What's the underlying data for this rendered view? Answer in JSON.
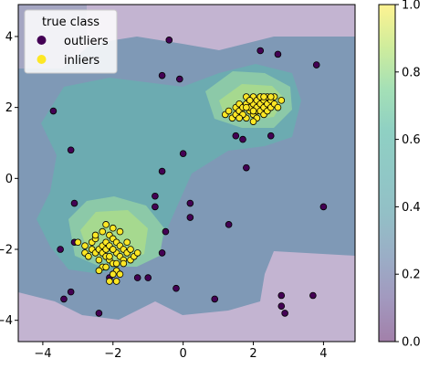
{
  "chart_data": {
    "type": "scatter",
    "title": "",
    "xlabel": "",
    "ylabel": "",
    "xlim": [
      -4.7,
      4.9
    ],
    "ylim": [
      -4.6,
      4.9
    ],
    "xticks": [
      -4,
      -2,
      0,
      2,
      4
    ],
    "xtick_labels": [
      "−4",
      "−2",
      "0",
      "2",
      "4"
    ],
    "yticks": [
      -4,
      -2,
      0,
      2,
      4
    ],
    "ytick_labels": [
      "−4",
      "−2",
      "0",
      "2",
      "4"
    ],
    "grid": false,
    "background": {
      "type": "contourf",
      "colormap": "viridis",
      "alpha": 0.5,
      "range": [
        0.0,
        1.0
      ]
    },
    "colorbar": {
      "ticks": [
        0.0,
        0.2,
        0.4,
        0.6,
        0.8,
        1.0
      ],
      "tick_labels": [
        "0.0",
        "0.2",
        "0.4",
        "0.6",
        "0.8",
        "1.0"
      ]
    },
    "legend": {
      "title": "true class",
      "placement": "top-left",
      "entries": [
        {
          "label": "outliers",
          "color": "#440154"
        },
        {
          "label": "inliers",
          "color": "#fde725"
        }
      ]
    },
    "series": [
      {
        "name": "outliers",
        "color": "#440154",
        "x": [
          -0.4,
          -0.6,
          2.2,
          2.7,
          3.8,
          -0.1,
          -3.7,
          -3.2,
          1.5,
          1.7,
          2.5,
          0.0,
          1.8,
          -0.6,
          -0.8,
          -0.8,
          -3.1,
          0.2,
          0.2,
          1.3,
          -3.5,
          -3.1,
          -2.6,
          -0.6,
          -0.5,
          4.0,
          -2.0,
          -1.3,
          -1.0,
          -2.1,
          -3.2,
          -3.4,
          -0.2,
          0.9,
          2.8,
          2.8,
          3.7,
          -2.4,
          2.9
        ],
        "y": [
          3.9,
          2.9,
          3.6,
          3.5,
          3.2,
          2.8,
          1.9,
          0.8,
          1.2,
          1.1,
          1.2,
          0.7,
          0.3,
          0.2,
          -0.5,
          -0.8,
          -0.7,
          -0.7,
          -1.1,
          -1.3,
          -2.0,
          -1.8,
          -2.0,
          -2.1,
          -1.5,
          -0.8,
          -2.7,
          -2.8,
          -2.8,
          -2.8,
          -3.2,
          -3.4,
          -3.1,
          -3.4,
          -3.3,
          -3.6,
          -3.3,
          -3.8,
          -3.8
        ]
      },
      {
        "name": "inliers",
        "color": "#fde725",
        "x": [
          1.2,
          1.3,
          1.4,
          1.5,
          1.5,
          1.6,
          1.6,
          1.7,
          1.7,
          1.8,
          1.8,
          1.8,
          1.9,
          1.9,
          1.9,
          2.0,
          2.0,
          2.0,
          2.1,
          2.1,
          2.1,
          2.2,
          2.2,
          2.2,
          2.3,
          2.3,
          2.3,
          2.4,
          2.4,
          2.5,
          2.5,
          2.6,
          2.6,
          2.7,
          2.8,
          2.0,
          1.7,
          2.2,
          2.4,
          1.9,
          2.1,
          1.6,
          2.3,
          2.5,
          1.8,
          2.0,
          -3.0,
          -2.8,
          -2.8,
          -2.7,
          -2.6,
          -2.6,
          -2.5,
          -2.5,
          -2.4,
          -2.4,
          -2.3,
          -2.3,
          -2.3,
          -2.2,
          -2.2,
          -2.2,
          -2.1,
          -2.1,
          -2.1,
          -2.0,
          -2.0,
          -2.0,
          -1.9,
          -1.9,
          -1.9,
          -1.8,
          -1.8,
          -1.8,
          -1.7,
          -1.7,
          -1.6,
          -1.6,
          -1.5,
          -1.5,
          -1.4,
          -2.2,
          -2.0,
          -2.4,
          -2.1,
          -1.9,
          -2.3,
          -2.0,
          -1.8,
          -2.2,
          -1.9,
          -2.1,
          -2.5,
          -1.7,
          -2.0,
          -1.3
        ],
        "y": [
          1.8,
          1.9,
          1.7,
          2.0,
          1.8,
          1.9,
          2.1,
          1.8,
          2.0,
          1.7,
          2.1,
          2.3,
          1.9,
          2.0,
          2.2,
          1.8,
          2.1,
          2.3,
          1.9,
          2.0,
          2.2,
          1.9,
          2.1,
          2.3,
          1.8,
          2.0,
          2.2,
          1.9,
          2.1,
          2.0,
          2.2,
          2.1,
          2.3,
          2.0,
          2.2,
          1.9,
          1.8,
          2.3,
          2.3,
          2.2,
          1.7,
          1.7,
          2.3,
          2.3,
          2.0,
          1.6,
          -1.8,
          -2.1,
          -1.9,
          -2.2,
          -2.0,
          -1.8,
          -2.1,
          -1.7,
          -2.0,
          -2.3,
          -1.9,
          -2.1,
          -2.5,
          -1.8,
          -2.0,
          -2.2,
          -1.6,
          -1.9,
          -2.3,
          -1.7,
          -2.0,
          -2.4,
          -1.8,
          -2.1,
          -2.6,
          -1.9,
          -2.2,
          -2.7,
          -2.0,
          -2.3,
          -1.8,
          -2.1,
          -2.0,
          -2.3,
          -2.2,
          -1.3,
          -1.4,
          -2.6,
          -2.9,
          -2.9,
          -1.5,
          -2.7,
          -1.5,
          -2.5,
          -2.4,
          -2.2,
          -1.6,
          -2.4,
          -2.0,
          -2.1
        ]
      }
    ]
  }
}
